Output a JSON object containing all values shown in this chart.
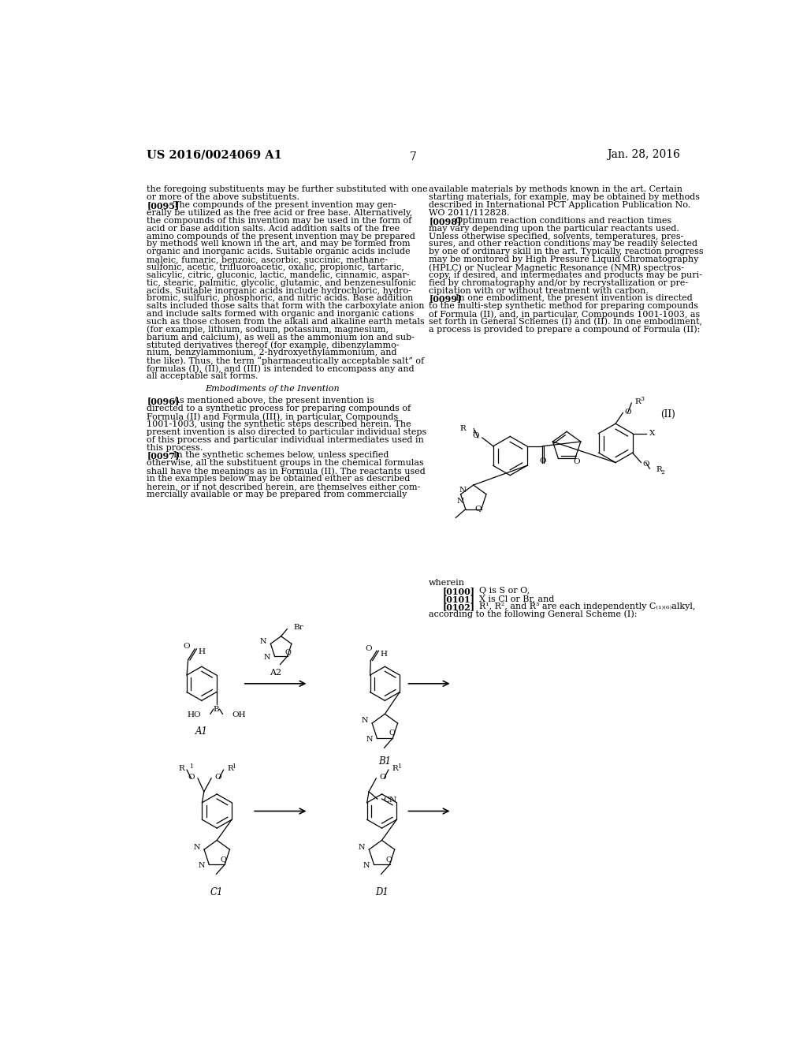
{
  "background_color": "#ffffff",
  "text_color": "#000000",
  "page_number": "7",
  "header_left": "US 2016/0024069 A1",
  "header_right": "Jan. 28, 2016",
  "left_col_lines": [
    "the foregoing substituents may be further substituted with one",
    "or more of the above substituents.",
    "[0095]    The compounds of the present invention may gen-",
    "erally be utilized as the free acid or free base. Alternatively,",
    "the compounds of this invention may be used in the form of",
    "acid or base addition salts. Acid addition salts of the free",
    "amino compounds of the present invention may be prepared",
    "by methods well known in the art, and may be formed from",
    "organic and inorganic acids. Suitable organic acids include",
    "maleic, fumaric, benzoic, ascorbic, succinic, methane-",
    "sulfonic, acetic, trifluoroacetic, oxalic, propionic, tartaric,",
    "salicylic, citric, gluconic, lactic, mandelic, cinnamic, aspar-",
    "tic, stearic, palmitic, glycolic, glutamic, and benzenesulfonic",
    "acids. Suitable inorganic acids include hydrochloric, hydro-",
    "bromic, sulfuric, phosphoric, and nitric acids. Base addition",
    "salts included those salts that form with the carboxylate anion",
    "and include salts formed with organic and inorganic cations",
    "such as those chosen from the alkali and alkaline earth metals",
    "(for example, lithium, sodium, potassium, magnesium,",
    "barium and calcium), as well as the ammonium ion and sub-",
    "stituted derivatives thereof (for example, dibenzylammo-",
    "nium, benzylammonium, 2-hydroxyethylammonium, and",
    "the like). Thus, the term “pharmaceutically acceptable salt” of",
    "formulas (I), (II), and (III) is intended to encompass any and",
    "all acceptable salt forms.",
    "",
    "~~CENTER~~Embodiments of the Invention",
    "",
    "[0096]    As mentioned above, the present invention is",
    "directed to a synthetic process for preparing compounds of",
    "Formula (II) and Formula (III), in particular, Compounds",
    "1001-1003, using the synthetic steps described herein. The",
    "present invention is also directed to particular individual steps",
    "of this process and particular individual intermediates used in",
    "this process.",
    "[0097]    In the synthetic schemes below, unless specified",
    "otherwise, all the substituent groups in the chemical formulas",
    "shall have the meanings as in Formula (II). The reactants used",
    "in the examples below may be obtained either as described",
    "herein, or if not described herein, are themselves either com-",
    "mercially available or may be prepared from commercially"
  ],
  "right_col_lines": [
    "available materials by methods known in the art. Certain",
    "starting materials, for example, may be obtained by methods",
    "described in International PCT Application Publication No.",
    "WO 2011/112828.",
    "[0098]    Optimum reaction conditions and reaction times",
    "may vary depending upon the particular reactants used.",
    "Unless otherwise specified, solvents, temperatures, pres-",
    "sures, and other reaction conditions may be readily selected",
    "by one of ordinary skill in the art. Typically, reaction progress",
    "may be monitored by High Pressure Liquid Chromatography",
    "(HPLC) or Nuclear Magnetic Resonance (NMR) spectros-",
    "copy, if desired, and intermediates and products may be puri-",
    "fied by chromatography and/or by recrystallization or pre-",
    "cipitation with or without treatment with carbon.",
    "[0099]    In one embodiment, the present invention is directed",
    "to the multi-step synthetic method for preparing compounds",
    "of Formula (II), and, in particular, Compounds 1001-1003, as",
    "set forth in General Schemes (I) and (II). In one embodiment,",
    "a process is provided to prepare a compound of Formula (II):"
  ],
  "wherein_lines": [
    "wherein",
    "~~INDENT~~[0100]~~TAB~~Q is S or O,",
    "~~INDENT~~[0101]~~TAB~~X is Cl or Br, and",
    "~~INDENT~~[0102]~~TAB~~R¹, R², and R³ are each independently C₍₁₎₍₆₎alkyl,",
    "according to the following General Scheme (I):"
  ]
}
